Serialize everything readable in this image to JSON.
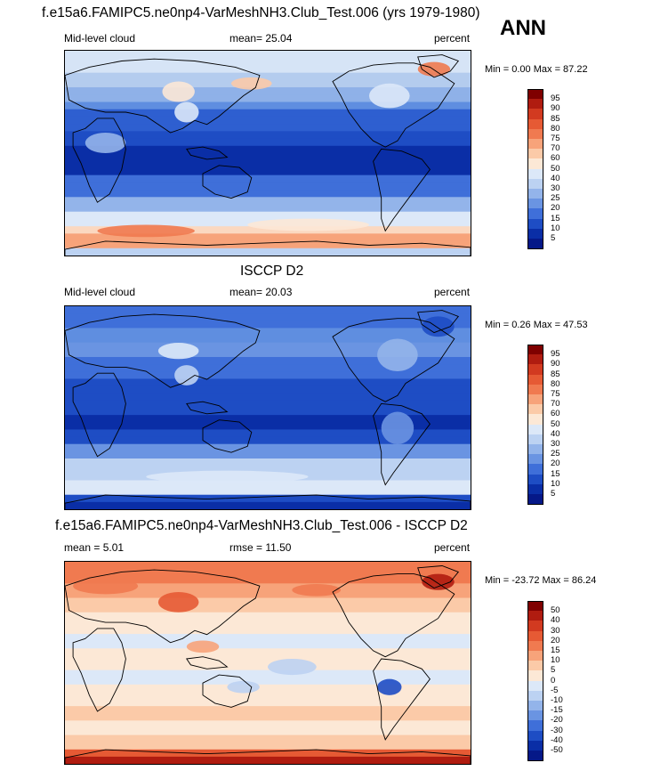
{
  "header": {
    "title_top": "f.e15a6.FAMIPC5.ne0np4-VarMeshNH3.Club_Test.006 (yrs 1979-1980)",
    "season": "ANN"
  },
  "panels": [
    {
      "id": "model",
      "title": "",
      "left_label": "Mid-level cloud",
      "center_label": "mean=  25.04",
      "right_label": "percent",
      "min_max": "Min =   0.00 Max =  87.22",
      "colorbar": {
        "ticks": [
          "95",
          "90",
          "85",
          "80",
          "75",
          "70",
          "60",
          "50",
          "40",
          "30",
          "25",
          "20",
          "15",
          "10",
          "5"
        ],
        "colors": [
          "#7f0000",
          "#b01c10",
          "#d23a20",
          "#e65a34",
          "#f07a50",
          "#f7a37a",
          "#fbcaa8",
          "#fce8d6",
          "#dce8f8",
          "#bcd2f2",
          "#93b4ea",
          "#6a94e2",
          "#3f6fd9",
          "#1e4dc4",
          "#0a2ea6",
          "#051888"
        ]
      },
      "map_style": "model"
    },
    {
      "id": "obs",
      "title": "ISCCP D2",
      "left_label": "Mid-level cloud",
      "center_label": "mean=  20.03",
      "right_label": "percent",
      "min_max": "Min =   0.26 Max =  47.53",
      "colorbar": {
        "ticks": [
          "95",
          "90",
          "85",
          "80",
          "75",
          "70",
          "60",
          "50",
          "40",
          "30",
          "25",
          "20",
          "15",
          "10",
          "5"
        ],
        "colors": [
          "#7f0000",
          "#b01c10",
          "#d23a20",
          "#e65a34",
          "#f07a50",
          "#f7a37a",
          "#fbcaa8",
          "#fce8d6",
          "#dce8f8",
          "#bcd2f2",
          "#93b4ea",
          "#6a94e2",
          "#3f6fd9",
          "#1e4dc4",
          "#0a2ea6",
          "#051888"
        ]
      },
      "map_style": "obs"
    },
    {
      "id": "diff",
      "title": "f.e15a6.FAMIPC5.ne0np4-VarMeshNH3.Club_Test.006 - ISCCP D2",
      "left_label": "mean =   5.01",
      "center_label": "rmse =  11.50",
      "right_label": "percent",
      "min_max": "Min = -23.72 Max =  86.24",
      "colorbar": {
        "ticks": [
          "50",
          "40",
          "30",
          "20",
          "15",
          "10",
          "5",
          "0",
          "-5",
          "-10",
          "-15",
          "-20",
          "-30",
          "-40",
          "-50"
        ],
        "colors": [
          "#7f0000",
          "#b01c10",
          "#d23a20",
          "#e65a34",
          "#f07a50",
          "#f7a37a",
          "#fbcaa8",
          "#fce8d6",
          "#dce8f8",
          "#bcd2f2",
          "#93b4ea",
          "#6a94e2",
          "#3f6fd9",
          "#1e4dc4",
          "#0a2ea6",
          "#051888"
        ]
      },
      "map_style": "diff"
    }
  ]
}
